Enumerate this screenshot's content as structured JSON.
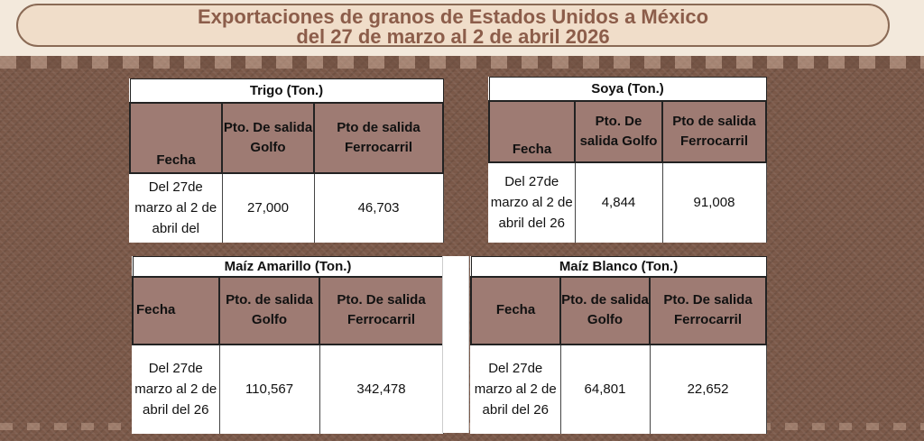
{
  "title": {
    "line1": "Exportaciones de granos de Estados Unidos a México",
    "line2": "del  27 de marzo al 2 de abril 2026"
  },
  "colors": {
    "header_fill": "#9e7b73",
    "title_text": "#8c5d4a",
    "banner_fill": "#f0ddc9",
    "background": "#7a5848"
  },
  "tables": {
    "trigo": {
      "caption": "Trigo  (Ton.)",
      "headers": [
        "Fecha",
        "Pto. De salida Golfo",
        "Pto de salida Ferrocarril"
      ],
      "row": [
        "Del 27de marzo al 2 de abril del",
        "27,000",
        "46,703"
      ]
    },
    "soya": {
      "caption": "Soya  (Ton.)",
      "headers": [
        "Fecha",
        "Pto. De salida Golfo",
        "Pto de salida Ferrocarril"
      ],
      "row": [
        "Del 27de marzo al 2 de abril del 26",
        "4,844",
        "91,008"
      ]
    },
    "maiz_amarillo": {
      "caption": "Maíz Amarillo (Ton.)",
      "headers": [
        "Fecha",
        "Pto. de salida Golfo",
        "Pto. De salida Ferrocarril"
      ],
      "row": [
        "Del 27de marzo al 2 de abril del 26",
        "110,567",
        "342,478"
      ]
    },
    "maiz_blanco": {
      "caption": "Maíz Blanco (Ton.)",
      "headers": [
        "Fecha",
        "Pto. de salida Golfo",
        "Pto. De salida Ferrocarril"
      ],
      "row": [
        "Del 27de marzo al 2 de abril del 26",
        "64,801",
        "22,652"
      ]
    }
  }
}
